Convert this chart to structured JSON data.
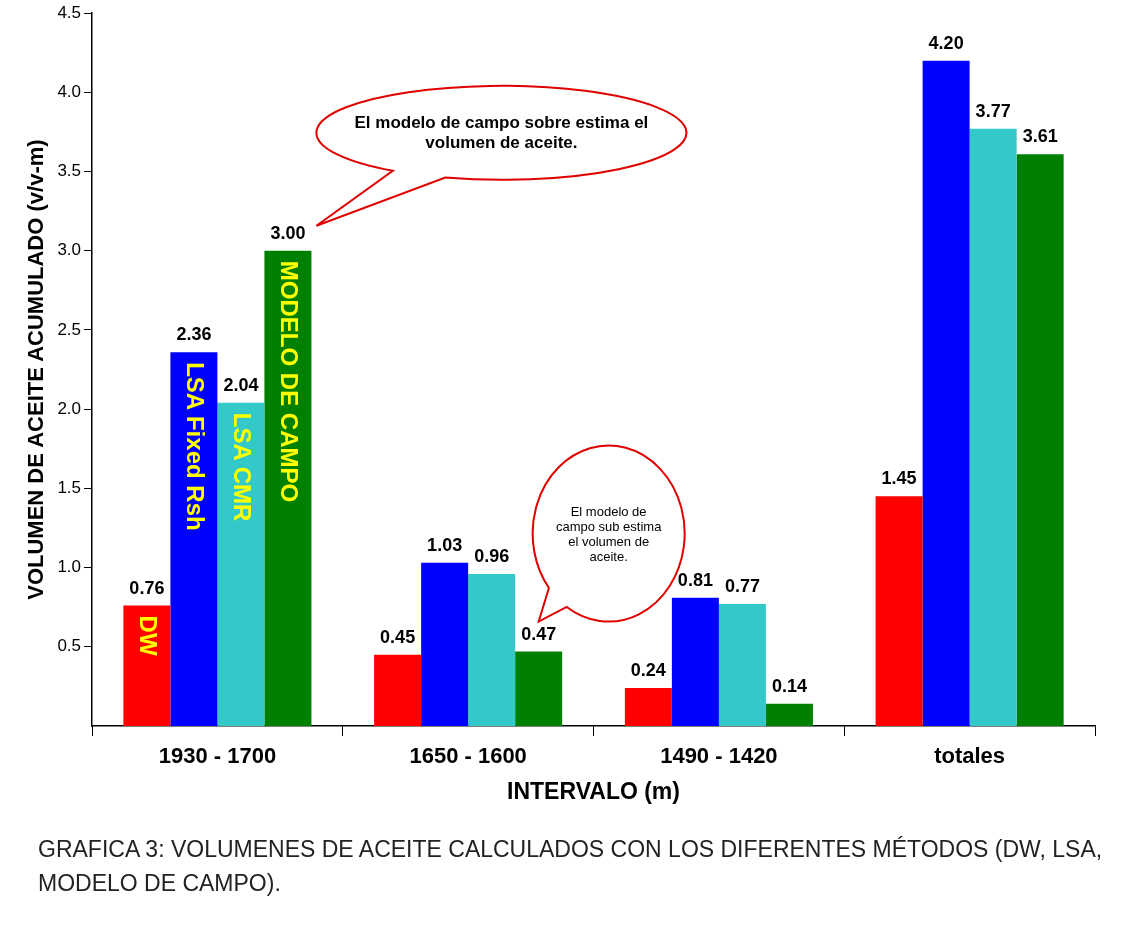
{
  "chart_data": {
    "type": "bar",
    "xlabel": "INTERVALO (m)",
    "ylabel": "VOLUMEN DE ACEITE ACUMULADO (v/v-m)",
    "categories": [
      "1930 - 1700",
      "1650 - 1600",
      "1490 - 1420",
      "totales"
    ],
    "series": [
      {
        "name": "DW",
        "color": "#ff0000",
        "values": [
          0.76,
          0.45,
          0.24,
          1.45
        ],
        "value_labels": [
          "0.76",
          "0.45",
          "0.24",
          "1.45"
        ]
      },
      {
        "name": "LSA Fixed Rsh",
        "color": "#0000ff",
        "values": [
          2.36,
          1.03,
          0.81,
          4.2
        ],
        "value_labels": [
          "2.36",
          "1.03",
          "0.81",
          "4.20"
        ]
      },
      {
        "name": "LSA CMR",
        "color": "#33c9c9",
        "values": [
          2.04,
          0.96,
          0.77,
          3.77
        ],
        "value_labels": [
          "2.04",
          "0.96",
          "0.77",
          "3.77"
        ]
      },
      {
        "name": "MODELO DE CAMPO",
        "color": "#008000",
        "values": [
          3.0,
          0.47,
          0.14,
          3.61
        ],
        "value_labels": [
          "3.00",
          "0.47",
          "0.14",
          "3.61"
        ]
      }
    ],
    "ylim": [
      0,
      4.5
    ],
    "yticks": [
      0.5,
      {
        "value": 1,
        "label": "1.0"
      },
      1.5,
      {
        "value": 2,
        "label": "2.0"
      },
      2.5,
      {
        "value": 3,
        "label": "3.0"
      },
      3.5,
      {
        "value": 4,
        "label": "4.0"
      },
      4.5
    ],
    "grid": false,
    "legend": false,
    "annotations": [
      "El modelo de campo sobre estima el volumen de aceite.",
      "El modelo de campo sub estima el volumen de aceite.",
      "GRAFICA 3: VOLUMENES DE ACEITE CALCULADOS CON LOS DIFERENTES MÉTODOS (DW, LSA, MODELO DE CAMPO)."
    ]
  }
}
